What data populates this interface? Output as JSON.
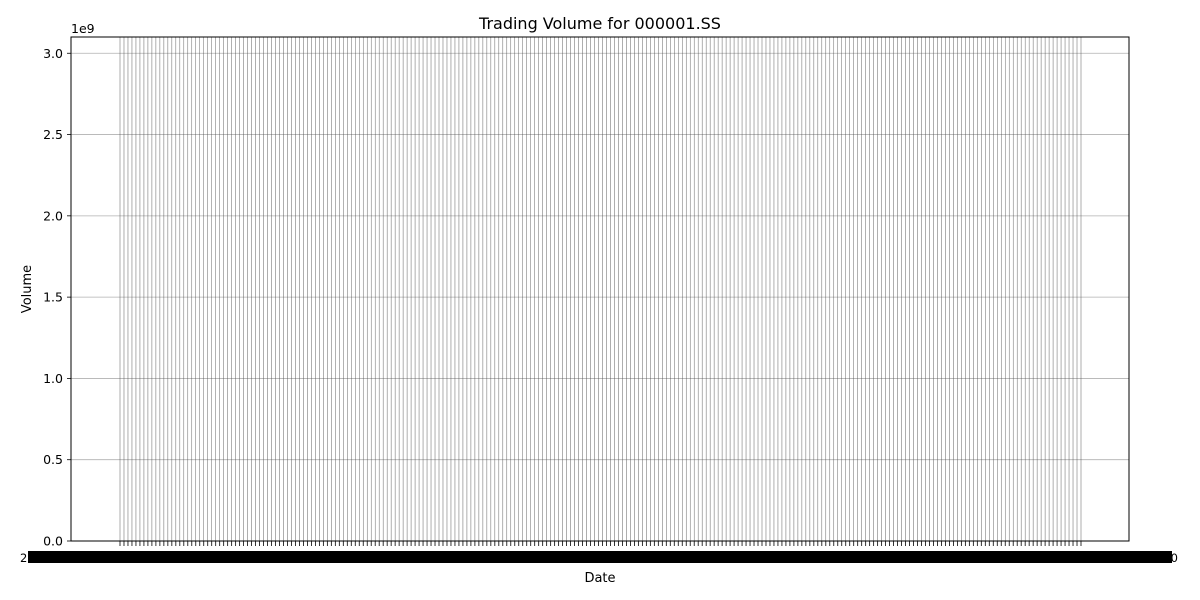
{
  "chart_data": {
    "type": "bar",
    "title": "Trading Volume for 000001.SS",
    "xlabel": "Date",
    "ylabel": "Volume",
    "y_multiplier_label": "1e9",
    "ylim": [
      0,
      3.1
    ],
    "y_ticks": [
      0.0,
      0.5,
      1.0,
      1.5,
      2.0,
      2.5,
      3.0
    ],
    "y_tick_labels": [
      "0.0",
      "0.5",
      "1.0",
      "1.5",
      "2.0",
      "2.5",
      "3.0"
    ],
    "grid": true,
    "x_tick_labels_overlapping": true,
    "x_tick_label_left_glimpse": "2",
    "x_tick_label_right_glimpse": "0",
    "bar_count": 242,
    "bar_value_all": 3.1,
    "bar_color": "#000000",
    "bar_edge_color": "#000000"
  }
}
